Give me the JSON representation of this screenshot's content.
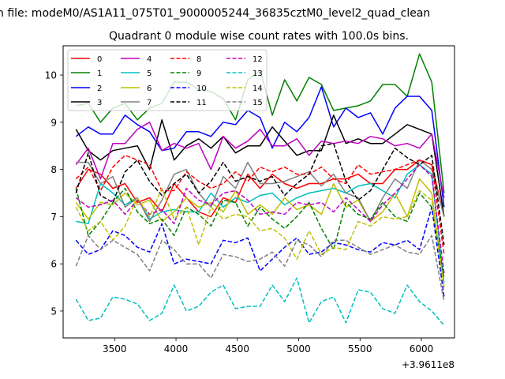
{
  "chart_data": {
    "type": "line",
    "suptitle": "n file: modeM0/AS1A11_075T01_9000005244_36835cztM0_level2_quad_clean",
    "title": "Quadrant 0 module wise count rates with 100.0s bins.",
    "xlabel": "",
    "ylabel": "",
    "x_offset_label": "+3.9611e8",
    "xlim": [
      3080,
      6270
    ],
    "ylim": [
      4.43,
      10.62
    ],
    "xticks": [
      3500,
      4000,
      4500,
      5000,
      5500,
      6000
    ],
    "yticks": [
      5,
      6,
      7,
      8,
      9,
      10
    ],
    "grid": false,
    "legend": "upper-left, 4 columns",
    "x": [
      3185,
      3285,
      3385,
      3485,
      3585,
      3685,
      3785,
      3885,
      3985,
      4085,
      4185,
      4285,
      4385,
      4485,
      4585,
      4685,
      4785,
      4885,
      4985,
      5085,
      5185,
      5285,
      5385,
      5485,
      5585,
      5685,
      5785,
      5885,
      5985,
      6085,
      6185
    ],
    "series": [
      {
        "name": "0",
        "color": "#ff0000",
        "dash": "solid",
        "values": [
          7.6,
          8.0,
          7.9,
          7.6,
          7.7,
          7.3,
          7.4,
          7.1,
          7.7,
          7.4,
          7.1,
          7.0,
          7.4,
          7.3,
          7.9,
          7.6,
          7.9,
          7.7,
          7.6,
          7.7,
          7.7,
          7.8,
          7.8,
          7.9,
          7.7,
          7.7,
          8.0,
          8.0,
          8.2,
          8.1,
          7.0
        ]
      },
      {
        "name": "1",
        "color": "#008000",
        "dash": "solid",
        "values": [
          9.35,
          9.4,
          9.0,
          9.3,
          9.4,
          9.05,
          9.3,
          9.4,
          9.85,
          9.85,
          9.7,
          9.65,
          9.5,
          9.05,
          9.9,
          10.1,
          9.15,
          9.9,
          9.45,
          9.95,
          9.8,
          9.25,
          9.3,
          9.35,
          9.45,
          9.8,
          9.8,
          9.55,
          10.45,
          9.85,
          7.5
        ]
      },
      {
        "name": "2",
        "color": "#0000ff",
        "dash": "solid",
        "values": [
          8.7,
          8.9,
          8.75,
          8.75,
          9.15,
          8.95,
          8.8,
          8.4,
          8.45,
          8.8,
          8.8,
          8.7,
          9.0,
          8.95,
          9.25,
          9.1,
          8.45,
          9.0,
          8.8,
          9.1,
          9.75,
          8.9,
          9.3,
          9.1,
          9.2,
          8.75,
          9.3,
          9.55,
          9.55,
          9.25,
          7.2
        ]
      },
      {
        "name": "3",
        "color": "#000000",
        "dash": "solid",
        "values": [
          8.85,
          8.4,
          8.2,
          8.4,
          8.45,
          8.5,
          8.0,
          9.05,
          8.2,
          8.5,
          8.65,
          8.45,
          8.7,
          8.35,
          8.5,
          8.5,
          8.9,
          8.6,
          8.3,
          8.4,
          8.4,
          9.15,
          8.55,
          8.65,
          8.55,
          8.55,
          8.75,
          8.95,
          8.85,
          8.75,
          7.0
        ]
      },
      {
        "name": "4",
        "color": "#bf00bf",
        "dash": "solid",
        "values": [
          8.1,
          8.45,
          7.8,
          8.55,
          8.55,
          8.85,
          9.0,
          8.4,
          8.55,
          8.45,
          8.55,
          8.0,
          8.7,
          8.45,
          8.6,
          8.85,
          8.5,
          8.5,
          8.65,
          8.3,
          8.6,
          8.55,
          8.6,
          8.55,
          8.7,
          8.65,
          8.5,
          8.55,
          8.45,
          8.75,
          7.4
        ]
      },
      {
        "name": "5",
        "color": "#00bfbf",
        "dash": "solid",
        "values": [
          6.9,
          6.85,
          7.7,
          7.5,
          7.25,
          7.4,
          6.95,
          7.1,
          7.15,
          7.1,
          7.1,
          7.5,
          7.2,
          7.4,
          7.3,
          7.45,
          7.5,
          7.25,
          7.4,
          7.5,
          7.55,
          7.6,
          7.5,
          7.65,
          7.7,
          7.55,
          7.4,
          7.9,
          8.1,
          7.9,
          5.6
        ]
      },
      {
        "name": "6",
        "color": "#bfbf00",
        "dash": "solid",
        "values": [
          7.3,
          6.95,
          7.3,
          7.25,
          7.5,
          7.25,
          7.35,
          6.9,
          7.1,
          7.4,
          7.2,
          7.3,
          7.1,
          7.55,
          7.05,
          7.25,
          7.05,
          7.4,
          7.15,
          7.25,
          7.05,
          7.7,
          7.2,
          7.35,
          6.9,
          7.1,
          7.5,
          7.0,
          7.8,
          7.5,
          5.5
        ]
      },
      {
        "name": "7",
        "color": "#808080",
        "dash": "solid",
        "values": [
          8.15,
          8.15,
          7.7,
          7.85,
          7.2,
          7.4,
          6.9,
          7.35,
          7.9,
          8.0,
          7.5,
          7.2,
          7.85,
          7.6,
          8.15,
          7.7,
          7.7,
          7.75,
          7.85,
          7.95,
          7.65,
          7.9,
          7.5,
          7.4,
          6.9,
          7.4,
          7.8,
          7.6,
          8.2,
          8.0,
          7.0
        ]
      },
      {
        "name": "8",
        "color": "#ff0000",
        "dash": "dashed",
        "values": [
          7.8,
          8.05,
          7.55,
          8.05,
          8.3,
          8.2,
          8.1,
          7.55,
          7.55,
          7.95,
          7.75,
          7.6,
          7.7,
          7.95,
          7.75,
          8.05,
          7.95,
          8.05,
          7.9,
          7.9,
          8.05,
          7.8,
          7.7,
          8.1,
          7.9,
          7.95,
          8.0,
          8.1,
          8.2,
          8.1,
          6.2
        ]
      },
      {
        "name": "9",
        "color": "#008000",
        "dash": "dashed",
        "values": [
          7.6,
          6.6,
          6.9,
          7.3,
          7.6,
          7.1,
          6.85,
          6.95,
          6.6,
          7.2,
          7.05,
          6.8,
          7.35,
          7.3,
          6.8,
          7.2,
          6.95,
          6.75,
          7.0,
          7.3,
          6.75,
          6.3,
          7.3,
          7.05,
          6.95,
          7.3,
          7.0,
          6.9,
          7.5,
          7.2,
          5.7
        ]
      },
      {
        "name": "10",
        "color": "#0000ff",
        "dash": "dashed",
        "values": [
          6.5,
          6.2,
          6.3,
          6.7,
          6.6,
          6.35,
          6.25,
          6.85,
          6.0,
          6.1,
          6.05,
          6.0,
          6.5,
          6.45,
          6.55,
          5.85,
          6.1,
          6.35,
          6.55,
          6.2,
          6.25,
          6.45,
          6.4,
          6.3,
          6.25,
          6.45,
          6.4,
          6.5,
          6.3,
          7.2,
          5.3
        ]
      },
      {
        "name": "11",
        "color": "#000000",
        "dash": "dashed",
        "values": [
          7.5,
          8.35,
          7.45,
          7.3,
          7.95,
          8.2,
          7.75,
          7.45,
          7.7,
          7.9,
          7.5,
          7.75,
          8.15,
          7.75,
          7.85,
          7.75,
          7.85,
          7.45,
          7.7,
          7.9,
          8.5,
          8.55,
          7.75,
          7.35,
          7.55,
          8.0,
          8.45,
          8.25,
          8.1,
          8.3,
          6.4
        ]
      },
      {
        "name": "12",
        "color": "#bf00bf",
        "dash": "dashed",
        "values": [
          7.4,
          7.2,
          7.25,
          7.35,
          7.05,
          7.35,
          7.05,
          7.15,
          6.85,
          7.6,
          7.35,
          7.25,
          7.5,
          7.55,
          7.35,
          7.05,
          7.1,
          7.05,
          7.3,
          7.25,
          7.3,
          7.1,
          7.4,
          7.15,
          6.9,
          7.25,
          7.5,
          7.8,
          8.1,
          7.85,
          5.8
        ]
      },
      {
        "name": "13",
        "color": "#00bfbf",
        "dash": "dashed",
        "values": [
          5.25,
          4.8,
          4.85,
          5.3,
          5.25,
          5.15,
          4.8,
          4.95,
          5.55,
          5.0,
          5.1,
          5.4,
          5.55,
          5.05,
          5.1,
          5.1,
          5.55,
          5.2,
          5.7,
          4.75,
          5.2,
          5.3,
          4.75,
          5.45,
          5.4,
          5.05,
          4.95,
          5.55,
          5.2,
          5.0,
          4.7
        ]
      },
      {
        "name": "14",
        "color": "#bfbf00",
        "dash": "dashed",
        "values": [
          7.2,
          6.7,
          6.9,
          6.5,
          6.8,
          7.4,
          7.0,
          7.6,
          6.95,
          7.2,
          6.4,
          7.2,
          6.95,
          7.05,
          7.0,
          6.7,
          6.75,
          6.55,
          6.1,
          6.7,
          6.2,
          6.35,
          6.3,
          6.9,
          6.8,
          7.0,
          6.95,
          7.0,
          7.55,
          7.35,
          5.5
        ]
      },
      {
        "name": "15",
        "color": "#808080",
        "dash": "dashed",
        "values": [
          5.95,
          6.6,
          6.3,
          6.5,
          6.35,
          6.2,
          5.85,
          6.5,
          6.3,
          6.0,
          6.0,
          5.7,
          6.2,
          6.15,
          6.05,
          6.1,
          6.25,
          5.95,
          6.5,
          6.4,
          6.15,
          6.5,
          6.5,
          6.35,
          6.2,
          6.3,
          6.4,
          6.25,
          6.2,
          6.6,
          5.2
        ]
      }
    ]
  }
}
